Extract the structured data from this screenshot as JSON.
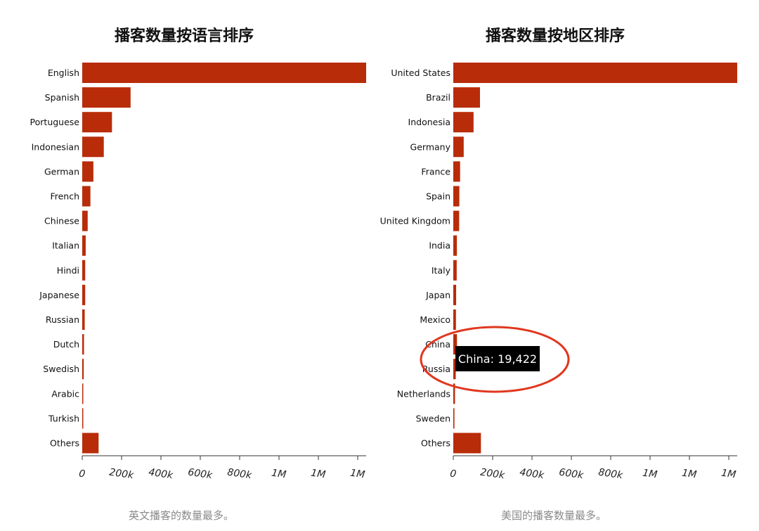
{
  "chart_data": [
    {
      "type": "bar",
      "orientation": "horizontal",
      "title": "播客数量按语言排序",
      "categories": [
        "English",
        "Spanish",
        "Portuguese",
        "Indonesian",
        "German",
        "French",
        "Chinese",
        "Italian",
        "Hindi",
        "Japanese",
        "Russian",
        "Dutch",
        "Swedish",
        "Arabic",
        "Turkish",
        "Others"
      ],
      "values": [
        1145000,
        195000,
        120000,
        87000,
        45000,
        33000,
        22000,
        14000,
        12000,
        12000,
        10000,
        7000,
        6000,
        3000,
        2000,
        66000
      ],
      "xlim": [
        0,
        1145000
      ],
      "x_ticks": [
        "0",
        "200k",
        "400k",
        "600k",
        "800k",
        "1M",
        "1M",
        "1M"
      ],
      "caption": "英文播客的数量最多。",
      "bar_color": "#b82c09"
    },
    {
      "type": "bar",
      "orientation": "horizontal",
      "title": "播客数量按地区排序",
      "categories": [
        "United States",
        "Brazil",
        "Indonesia",
        "Germany",
        "France",
        "Spain",
        "United Kingdom",
        "India",
        "Italy",
        "Japan",
        "Mexico",
        "China",
        "Russia",
        "Netherlands",
        "Sweden",
        "Others"
      ],
      "values": [
        1500000,
        141000,
        107000,
        55000,
        36000,
        32000,
        31000,
        19000,
        18000,
        15000,
        14000,
        19422,
        13000,
        9000,
        6000,
        146000
      ],
      "xlim": [
        0,
        1500000
      ],
      "x_ticks": [
        "0",
        "200k",
        "400k",
        "600k",
        "800k",
        "1M",
        "1M",
        "1M"
      ],
      "caption": "美国的播客数量最多。",
      "bar_color": "#b82c09",
      "tooltip": {
        "label": "China: 19,422",
        "category_index": 11
      }
    }
  ],
  "colors": {
    "bar": "#b82c09",
    "highlight_ring": "#e0371f",
    "tooltip_bg": "#000000"
  }
}
